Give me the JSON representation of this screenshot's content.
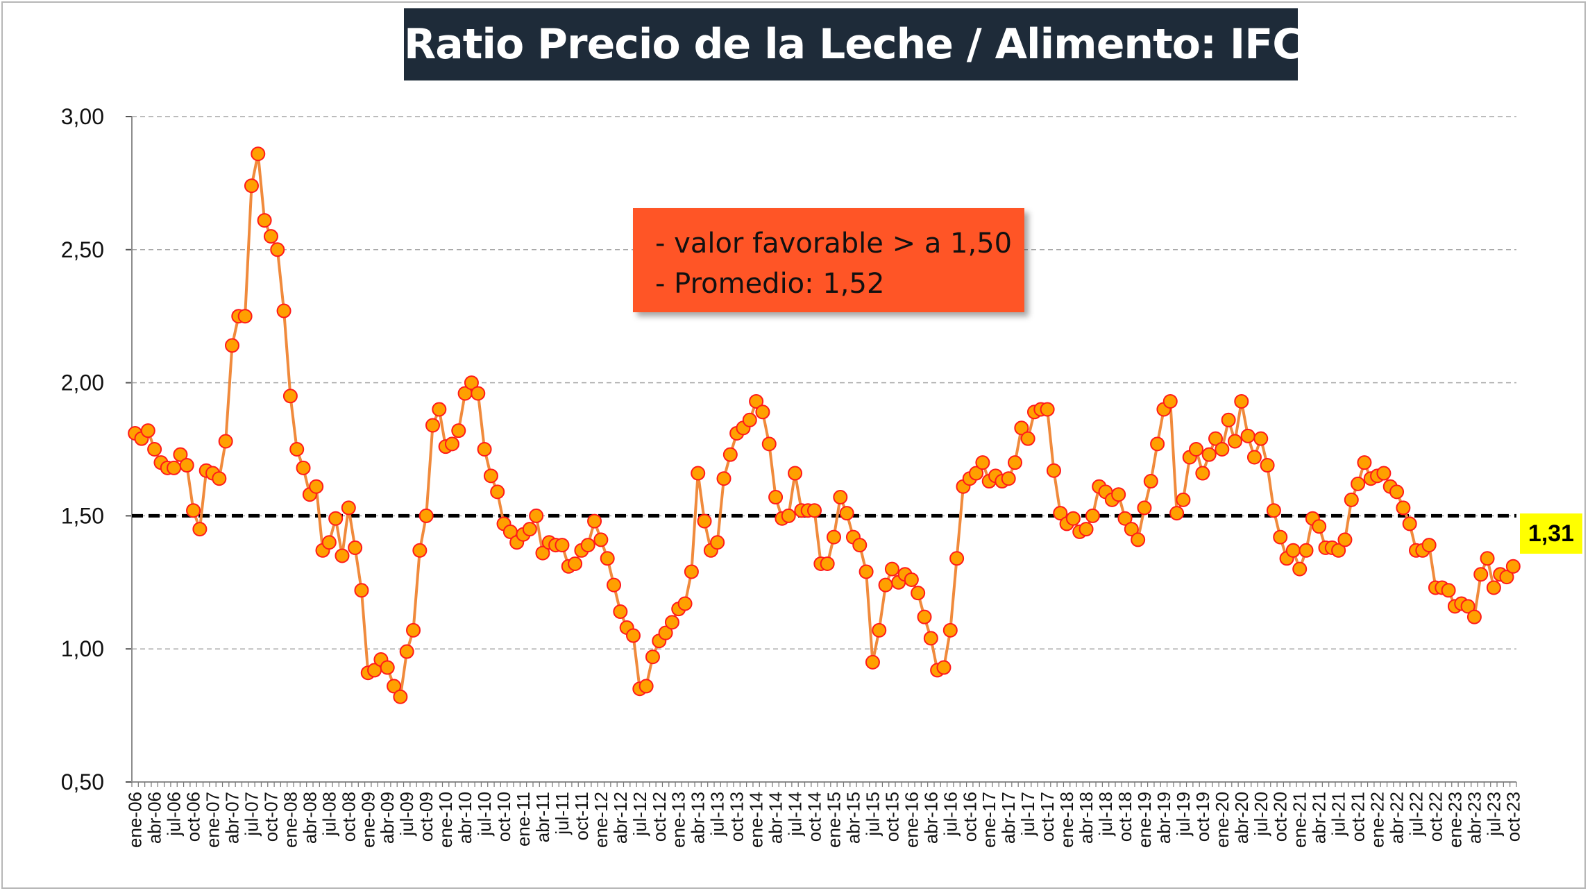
{
  "chart_data": {
    "type": "line",
    "title": "Ratio Precio de la Leche / Alimento: IFCN",
    "ylim": [
      0.5,
      3.0
    ],
    "yticks": [
      "0,50",
      "1,00",
      "1,50",
      "2,00",
      "2,50",
      "3,00"
    ],
    "grid": true,
    "reference_line": {
      "value": 1.5
    },
    "annotations": [
      "- valor favorable > a 1,50",
      "- Promedio: 1,52"
    ],
    "last_value_label": "1,31",
    "x_tick_labels": [
      "ene-06",
      "abr-06",
      "jul-06",
      "oct-06",
      "ene-07",
      "abr-07",
      "jul-07",
      "oct-07",
      "ene-08",
      "abr-08",
      "jul-08",
      "oct-08",
      "ene-09",
      "abr-09",
      "jul-09",
      "oct-09",
      "ene-10",
      "abr-10",
      "jul-10",
      "oct-10",
      "ene-11",
      "abr-11",
      "jul-11",
      "oct-11",
      "ene-12",
      "abr-12",
      "jul-12",
      "oct-12",
      "ene-13",
      "abr-13",
      "jul-13",
      "oct-13",
      "ene-14",
      "abr-14",
      "jul-14",
      "oct-14",
      "ene-15",
      "abr-15",
      "jul-15",
      "oct-15",
      "ene-16",
      "abr-16",
      "jul-16",
      "oct-16",
      "ene-17",
      "abr-17",
      "jul-17",
      "oct-17",
      "ene-18",
      "abr-18",
      "jul-18",
      "oct-18",
      "ene-19",
      "abr-19",
      "jul-19",
      "oct-19",
      "ene-20",
      "abr-20",
      "jul-20",
      "oct-20",
      "ene-21",
      "abr-21",
      "jul-21",
      "oct-21",
      "ene-22",
      "abr-22",
      "jul-22",
      "oct-22",
      "ene-23",
      "abr-23",
      "jul-23",
      "oct-23"
    ],
    "series": [
      {
        "values": [
          1.81,
          1.79,
          1.82,
          1.75,
          1.7,
          1.68,
          1.68,
          1.73,
          1.69,
          1.52,
          1.45,
          1.67,
          1.66,
          1.64,
          1.78,
          2.14,
          2.25,
          2.25,
          2.74,
          2.86,
          2.61,
          2.55,
          2.5,
          2.27,
          1.95,
          1.75,
          1.68,
          1.58,
          1.61,
          1.37,
          1.4,
          1.49,
          1.35,
          1.53,
          1.38,
          1.22,
          0.91,
          0.92,
          0.96,
          0.93,
          0.86,
          0.82,
          0.99,
          1.07,
          1.37,
          1.5,
          1.84,
          1.9,
          1.76,
          1.77,
          1.82,
          1.96,
          2.0,
          1.96,
          1.75,
          1.65,
          1.59,
          1.47,
          1.44,
          1.4,
          1.43,
          1.45,
          1.5,
          1.36,
          1.4,
          1.39,
          1.39,
          1.31,
          1.32,
          1.37,
          1.39,
          1.48,
          1.41,
          1.34,
          1.24,
          1.14,
          1.08,
          1.05,
          0.85,
          0.86,
          0.97,
          1.03,
          1.06,
          1.1,
          1.15,
          1.17,
          1.29,
          1.66,
          1.48,
          1.37,
          1.4,
          1.64,
          1.73,
          1.81,
          1.83,
          1.86,
          1.93,
          1.89,
          1.77,
          1.57,
          1.49,
          1.5,
          1.66,
          1.52,
          1.52,
          1.52,
          1.32,
          1.32,
          1.42,
          1.57,
          1.51,
          1.42,
          1.39,
          1.29,
          0.95,
          1.07,
          1.24,
          1.3,
          1.25,
          1.28,
          1.26,
          1.21,
          1.12,
          1.04,
          0.92,
          0.93,
          1.07,
          1.34,
          1.61,
          1.64,
          1.66,
          1.7,
          1.63,
          1.65,
          1.63,
          1.64,
          1.7,
          1.83,
          1.79,
          1.89,
          1.9,
          1.9,
          1.67,
          1.51,
          1.47,
          1.49,
          1.44,
          1.45,
          1.5,
          1.61,
          1.59,
          1.56,
          1.58,
          1.49,
          1.45,
          1.41,
          1.53,
          1.63,
          1.77,
          1.9,
          1.93,
          1.51,
          1.56,
          1.72,
          1.75,
          1.66,
          1.73,
          1.79,
          1.75,
          1.86,
          1.78,
          1.93,
          1.8,
          1.72,
          1.79,
          1.69,
          1.52,
          1.42,
          1.34,
          1.37,
          1.3,
          1.37,
          1.49,
          1.46,
          1.38,
          1.38,
          1.37,
          1.41,
          1.56,
          1.62,
          1.7,
          1.64,
          1.65,
          1.66,
          1.61,
          1.59,
          1.53,
          1.47,
          1.37,
          1.37,
          1.39,
          1.23,
          1.23,
          1.22,
          1.16,
          1.17,
          1.16,
          1.12,
          1.28,
          1.34,
          1.23,
          1.28,
          1.27,
          1.31
        ]
      }
    ]
  },
  "colors": {
    "line": "#f08a3c",
    "marker_fill": "#ffa000",
    "marker_edge": "#ff1a1a",
    "reference_line": "#000000",
    "grid": "#a6a6a6",
    "title_bg": "#1e2b39",
    "note_bg": "#ff5526",
    "badge_bg": "#ffff00"
  }
}
